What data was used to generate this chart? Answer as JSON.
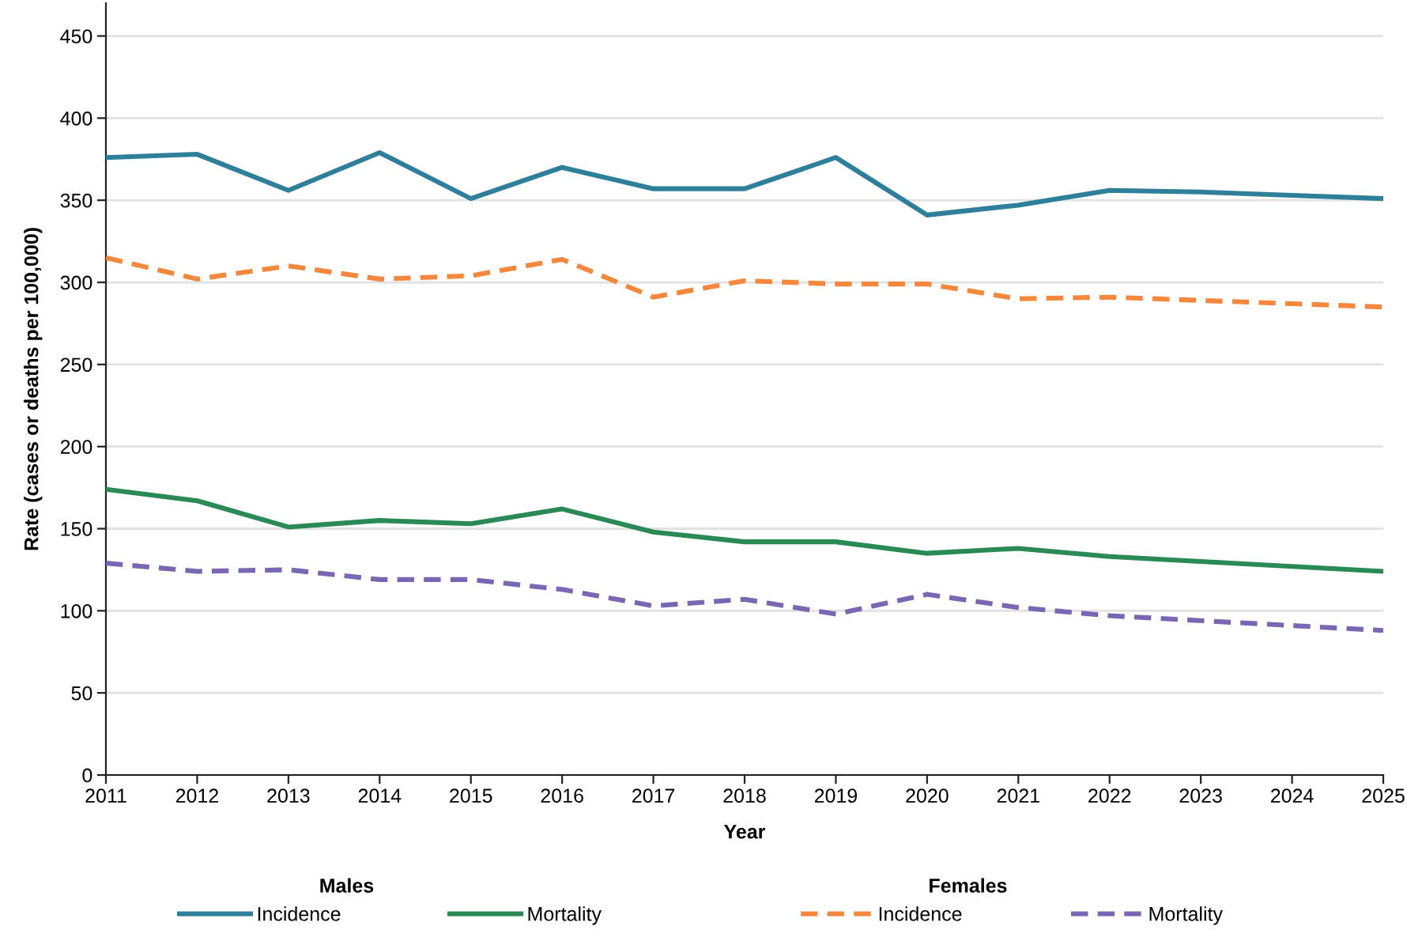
{
  "chart_data": {
    "type": "line",
    "xlabel": "Year",
    "ylabel": "Rate (cases or deaths per 100,000)",
    "x": [
      2011,
      2012,
      2013,
      2014,
      2015,
      2016,
      2017,
      2018,
      2019,
      2020,
      2021,
      2022,
      2023,
      2024,
      2025
    ],
    "series": [
      {
        "name": "Incidence",
        "color": "#2e7f99",
        "line_style": "solid",
        "values": [
          376,
          378,
          356,
          379,
          351,
          370,
          357,
          357,
          376,
          341,
          347,
          356,
          355,
          353,
          351
        ]
      },
      {
        "name": "Mortality",
        "color": "#2a8a55",
        "line_style": "solid",
        "values": [
          174,
          167,
          151,
          155,
          153,
          162,
          148,
          142,
          142,
          135,
          138,
          133,
          130,
          127,
          124
        ]
      },
      {
        "name": "Incidence",
        "color": "#f5883c",
        "line_style": "dashed",
        "values": [
          315,
          302,
          310,
          302,
          304,
          314,
          291,
          301,
          299,
          299,
          290,
          291,
          289,
          287,
          285
        ]
      },
      {
        "name": "Mortality",
        "color": "#7b66b3",
        "line_style": "dashed",
        "values": [
          129,
          124,
          125,
          119,
          119,
          113,
          103,
          107,
          98,
          110,
          102,
          97,
          94,
          91,
          88
        ]
      }
    ],
    "xlim": [
      2011,
      2025
    ],
    "ylim": [
      0,
      470
    ],
    "xticks": [
      2011,
      2012,
      2013,
      2014,
      2015,
      2016,
      2017,
      2018,
      2019,
      2020,
      2021,
      2022,
      2023,
      2024,
      2025
    ],
    "yticks": [
      0,
      50,
      100,
      150,
      200,
      250,
      300,
      350,
      400,
      450
    ],
    "grid": "y",
    "legend": "bottom",
    "annotations": [
      "Males",
      "Females"
    ]
  }
}
